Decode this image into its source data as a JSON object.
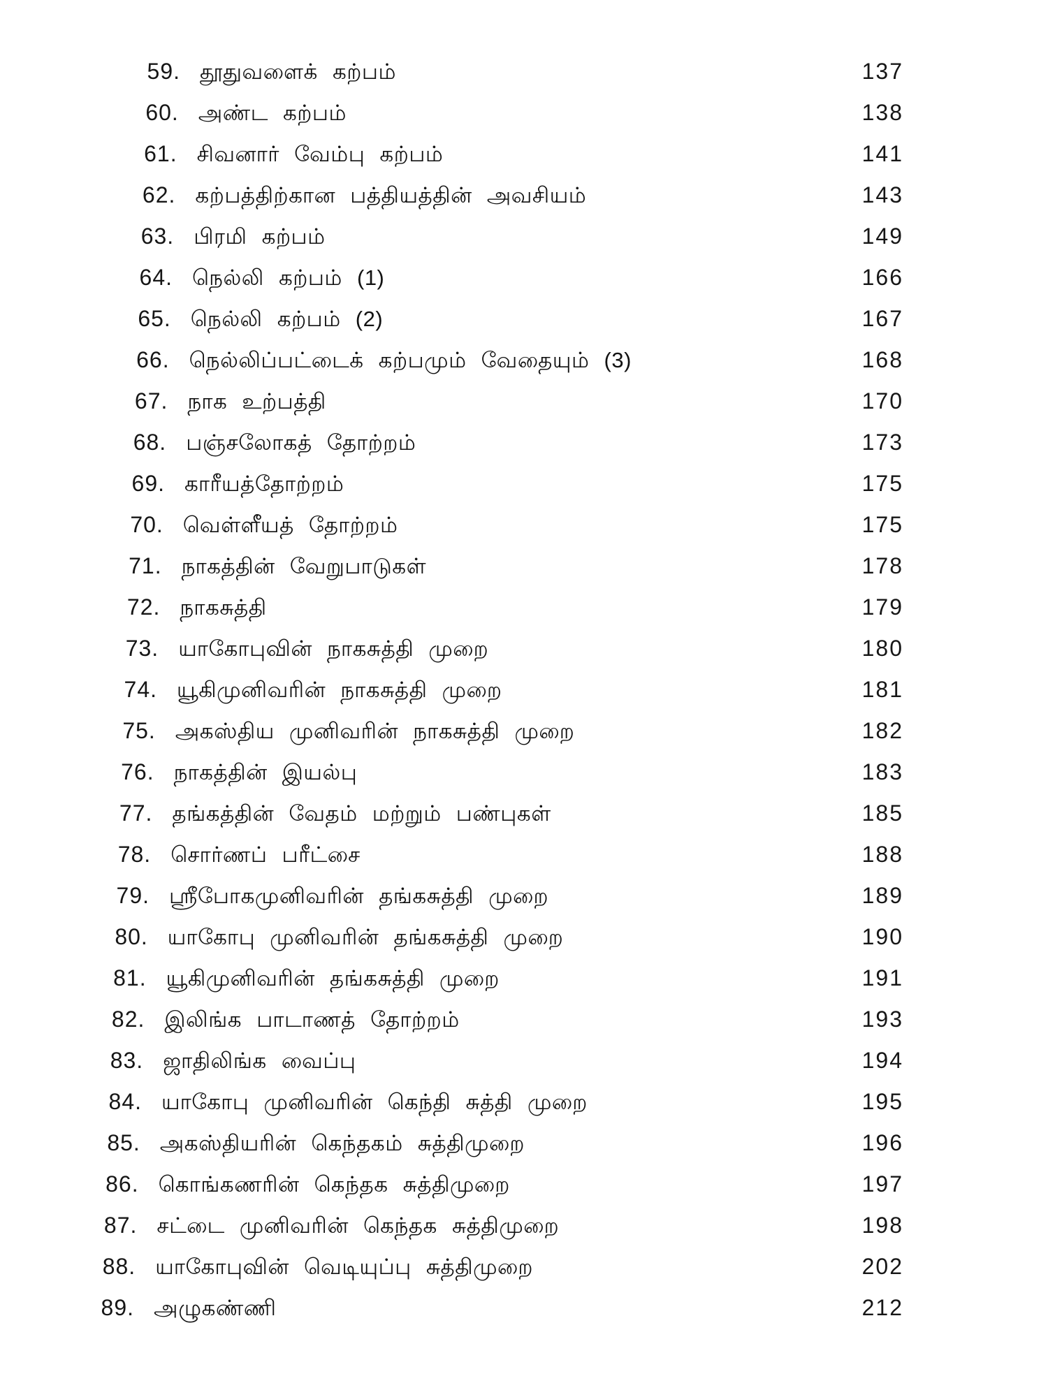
{
  "page": {
    "background_color": "#ffffff",
    "text_color": "#151515",
    "kind": "book-table-of-contents"
  },
  "toc": {
    "entries": [
      {
        "num": "59.",
        "title": "தூதுவளைக் கற்பம்",
        "page": "137"
      },
      {
        "num": "60.",
        "title": "அண்ட கற்பம்",
        "page": "138"
      },
      {
        "num": "61.",
        "title": "சிவனார் வேம்பு கற்பம்",
        "page": "141"
      },
      {
        "num": "62.",
        "title": "கற்பத்திற்கான பத்தியத்தின் அவசியம்",
        "page": "143"
      },
      {
        "num": "63.",
        "title": "பிரமி கற்பம்",
        "page": "149"
      },
      {
        "num": "64.",
        "title": "நெல்லி கற்பம் (1)",
        "page": "166"
      },
      {
        "num": "65.",
        "title": "நெல்லி கற்பம் (2)",
        "page": "167"
      },
      {
        "num": "66.",
        "title": "நெல்லிப்பட்டைக் கற்பமும் வேதையும் (3)",
        "page": "168"
      },
      {
        "num": "67.",
        "title": "நாக உற்பத்தி",
        "page": "170"
      },
      {
        "num": "68.",
        "title": "பஞ்சலோகத் தோற்றம்",
        "page": "173"
      },
      {
        "num": "69.",
        "title": "காரீயத்தோற்றம்",
        "page": "175"
      },
      {
        "num": "70.",
        "title": "வெள்ளீயத் தோற்றம்",
        "page": "175"
      },
      {
        "num": "71.",
        "title": "நாகத்தின் வேறுபாடுகள்",
        "page": "178"
      },
      {
        "num": "72.",
        "title": "நாகசுத்தி",
        "page": "179"
      },
      {
        "num": "73.",
        "title": "யாகோபுவின் நாகசுத்தி முறை",
        "page": "180"
      },
      {
        "num": "74.",
        "title": "யூகிமுனிவரின் நாகசுத்தி முறை",
        "page": "181"
      },
      {
        "num": "75.",
        "title": "அகஸ்திய முனிவரின் நாகசுத்தி முறை",
        "page": "182"
      },
      {
        "num": "76.",
        "title": "நாகத்தின் இயல்பு",
        "page": "183"
      },
      {
        "num": "77.",
        "title": "தங்கத்தின் வேதம் மற்றும் பண்புகள்",
        "page": "185"
      },
      {
        "num": "78.",
        "title": "சொர்ணப் பரீட்சை",
        "page": "188"
      },
      {
        "num": "79.",
        "title": "ஸ்ரீபோகமுனிவரின் தங்கசுத்தி முறை",
        "page": "189"
      },
      {
        "num": "80.",
        "title": "யாகோபு முனிவரின் தங்கசுத்தி முறை",
        "page": "190"
      },
      {
        "num": "81.",
        "title": "யூகிமுனிவரின் தங்கசுத்தி முறை",
        "page": "191"
      },
      {
        "num": "82.",
        "title": "இலிங்க பாடாணத் தோற்றம்",
        "page": "193"
      },
      {
        "num": "83.",
        "title": "ஜாதிலிங்க வைப்பு",
        "page": "194"
      },
      {
        "num": "84.",
        "title": "யாகோபு முனிவரின் கெந்தி சுத்தி முறை",
        "page": "195"
      },
      {
        "num": "85.",
        "title": "அகஸ்தியரின் கெந்தகம் சுத்திமுறை",
        "page": "196"
      },
      {
        "num": "86.",
        "title": "கொங்கணரின் கெந்தக சுத்திமுறை",
        "page": "197"
      },
      {
        "num": "87.",
        "title": "சட்டை முனிவரின் கெந்தக சுத்திமுறை",
        "page": "198"
      },
      {
        "num": "88.",
        "title": "யாகோபுவின் வெடியுப்பு சுத்திமுறை",
        "page": "202"
      },
      {
        "num": "89.",
        "title": "அழுகண்ணி",
        "page": "212"
      }
    ]
  }
}
